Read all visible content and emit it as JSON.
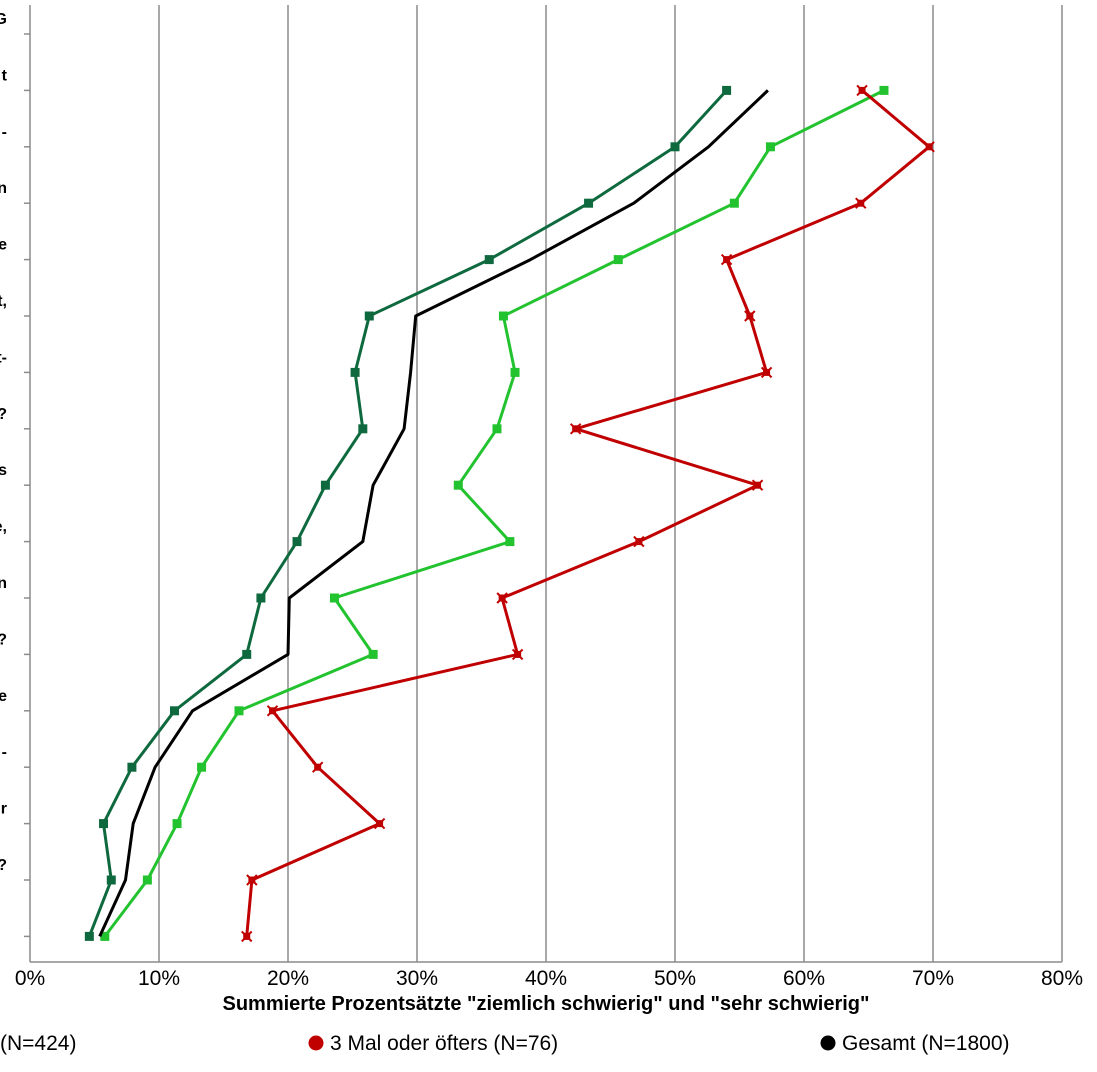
{
  "chart_data": {
    "type": "line",
    "orientation": "horizontal-values",
    "xlabel": "Summierte Prozentsätzte \"ziemlich schwierig\" und \"sehr schwierig\"",
    "xlim": [
      0,
      80
    ],
    "x_ticks": [
      "0%",
      "10%",
      "20%",
      "30%",
      "40%",
      "50%",
      "60%",
      "70%",
      "80%"
    ],
    "grid": "vertical",
    "legend_position": "bottom",
    "category_label_fragments": [
      "G",
      "t",
      "-",
      "n",
      "e",
      "t,",
      "t-",
      "?",
      "s",
      "e,",
      "n",
      "?",
      "e",
      "-",
      "r",
      "?"
    ],
    "series": [
      {
        "name": "(N=424)",
        "color": "#0e6a3e",
        "marker": "square",
        "values": [
          54.0,
          50.0,
          43.3,
          35.6,
          26.3,
          25.2,
          25.8,
          22.9,
          20.7,
          17.9,
          16.8,
          11.2,
          7.9,
          5.7,
          6.3,
          4.6
        ]
      },
      {
        "name": "",
        "color": "#22c32e",
        "marker": "square",
        "values": [
          66.2,
          57.4,
          54.6,
          45.6,
          36.7,
          37.6,
          36.2,
          33.2,
          37.2,
          23.6,
          26.6,
          16.2,
          13.3,
          11.4,
          9.1,
          5.8
        ]
      },
      {
        "name": "3 Mal oder öfters (N=76)",
        "color": "#c00000",
        "marker": "x",
        "values": [
          64.5,
          69.7,
          64.4,
          54.0,
          55.8,
          57.1,
          42.3,
          56.4,
          47.2,
          36.6,
          37.8,
          18.8,
          22.3,
          27.1,
          17.2,
          16.8
        ]
      },
      {
        "name": "Gesamt (N=1800)",
        "color": "#000000",
        "marker": "none",
        "values": [
          57.2,
          52.6,
          46.8,
          38.8,
          29.9,
          29.5,
          29.0,
          26.6,
          25.8,
          20.1,
          20.0,
          12.6,
          9.7,
          8.0,
          7.4,
          5.4
        ]
      }
    ],
    "legend": [
      {
        "label": "(N=424)",
        "color": "#0e6a3e",
        "marker": "none"
      },
      {
        "label": "3 Mal oder öfters (N=76)",
        "color": "#c00000",
        "marker": "dot"
      },
      {
        "label": "Gesamt (N=1800)",
        "color": "#000000",
        "marker": "dot"
      }
    ]
  }
}
